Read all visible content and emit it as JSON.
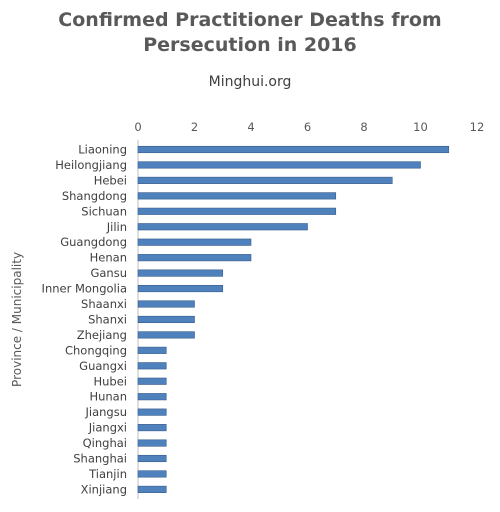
{
  "chart_data": {
    "type": "bar",
    "orientation": "horizontal",
    "title": "Confirmed Practitioner Deaths from Persecution in 2016",
    "subtitle": "Minghui.org",
    "xlabel": "",
    "ylabel": "Province / Municipality",
    "xlim": [
      0,
      12
    ],
    "xticks": [
      0,
      2,
      4,
      6,
      8,
      10,
      12
    ],
    "x_axis_position": "top",
    "grid": false,
    "bar_color": "#4f81bd",
    "categories": [
      "Liaoning",
      "Heilongjiang",
      "Hebei",
      "Shangdong",
      "Sichuan",
      "Jilin",
      "Guangdong",
      "Henan",
      "Gansu",
      "Inner Mongolia",
      "Shaanxi",
      "Shanxi",
      "Zhejiang",
      "Chongqing",
      "Guangxi",
      "Hubei",
      "Hunan",
      "Jiangsu",
      "Jiangxi",
      "Qinghai",
      "Shanghai",
      "Tianjin",
      "Xinjiang"
    ],
    "values": [
      11,
      10,
      9,
      7,
      7,
      6,
      4,
      4,
      3,
      3,
      2,
      2,
      2,
      1,
      1,
      1,
      1,
      1,
      1,
      1,
      1,
      1,
      1
    ]
  }
}
